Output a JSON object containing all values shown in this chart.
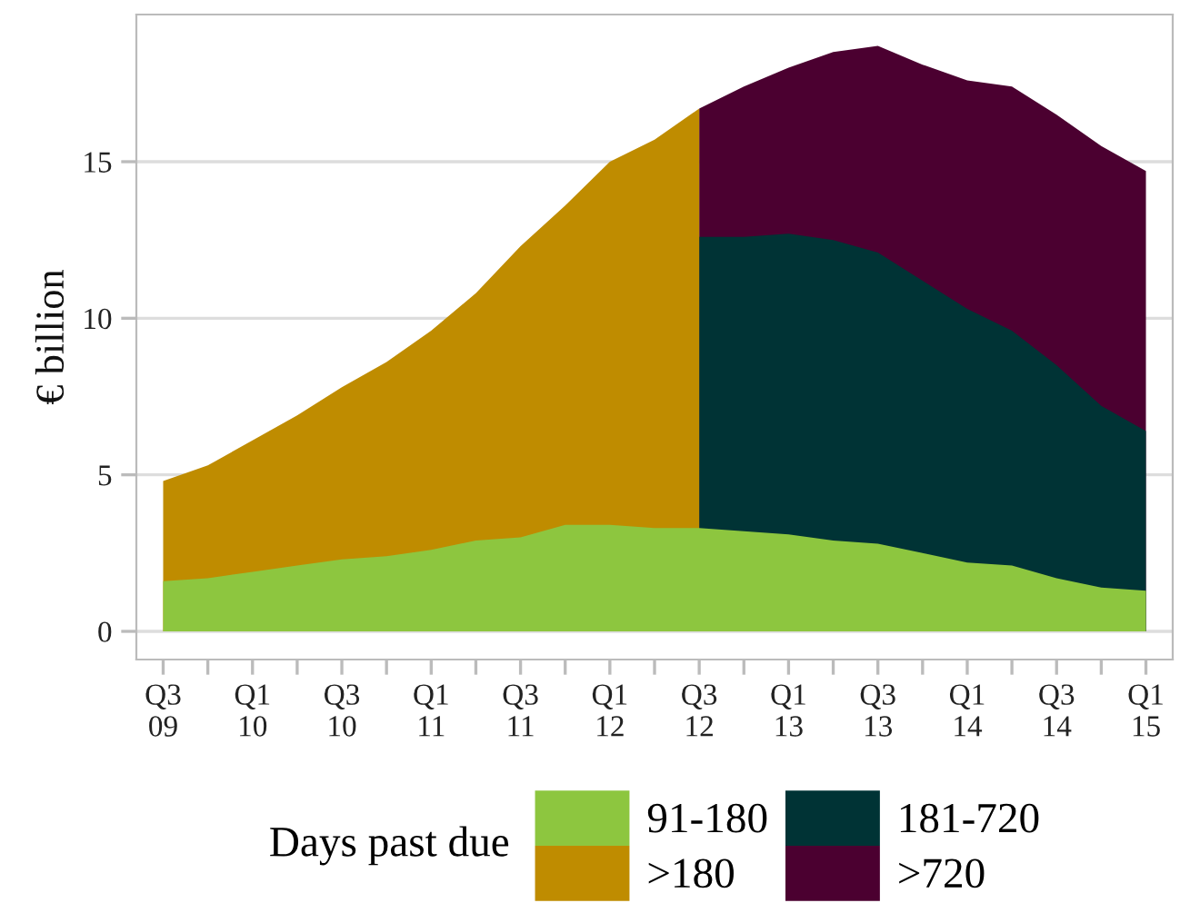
{
  "chart_data": {
    "type": "area",
    "ylabel": "€ billion",
    "legend_title": "Days past due",
    "categories": [
      "Q3\n09",
      null,
      "Q1\n10",
      null,
      "Q3\n10",
      null,
      "Q1\n11",
      null,
      "Q3\n11",
      null,
      "Q1\n12",
      null,
      "Q3\n12",
      null,
      "Q1\n13",
      null,
      "Q3\n13",
      null,
      "Q1\n14",
      null,
      "Q3\n14",
      null,
      "Q1\n15"
    ],
    "series": [
      {
        "name": "91-180",
        "color": "#8dc63f",
        "values": [
          1.6,
          1.7,
          1.9,
          2.1,
          2.3,
          2.4,
          2.6,
          2.9,
          3.0,
          3.4,
          3.4,
          3.3,
          3.3,
          3.2,
          3.1,
          2.9,
          2.8,
          2.5,
          2.2,
          2.1,
          1.7,
          1.4,
          1.3
        ]
      },
      {
        "name": ">180",
        "color": "#bf8c00",
        "values": [
          4.8,
          5.3,
          6.1,
          6.9,
          7.8,
          8.6,
          9.6,
          10.8,
          12.3,
          13.6,
          15.0,
          15.7,
          16.7,
          null,
          null,
          null,
          null,
          null,
          null,
          null,
          null,
          null,
          null
        ]
      },
      {
        "name": "181-720",
        "color": "#003335",
        "values": [
          null,
          null,
          null,
          null,
          null,
          null,
          null,
          null,
          null,
          null,
          null,
          null,
          12.6,
          12.6,
          12.7,
          12.5,
          12.1,
          11.2,
          10.3,
          9.6,
          8.5,
          7.2,
          6.4
        ]
      },
      {
        "name": ">720",
        "color": "#4b0030",
        "values": [
          null,
          null,
          null,
          null,
          null,
          null,
          null,
          null,
          null,
          null,
          null,
          null,
          16.7,
          17.4,
          18.0,
          18.5,
          18.7,
          18.1,
          17.6,
          17.4,
          16.5,
          15.5,
          14.7
        ]
      }
    ],
    "ylim": [
      -0.9,
      19.7
    ],
    "yticks": [
      0,
      5,
      10,
      15
    ],
    "grid": "y",
    "legend": "bottom"
  }
}
